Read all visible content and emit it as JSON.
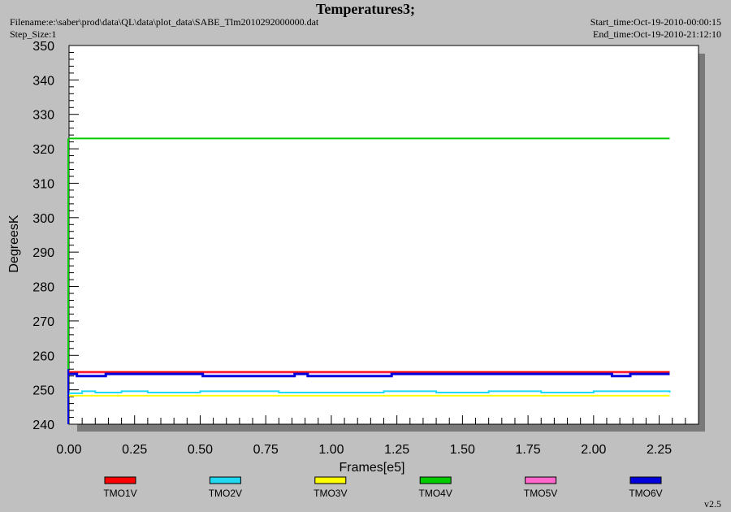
{
  "header": {
    "title": "Temperatures3;",
    "filename": "Filename:e:\\saber\\prod\\data\\QL\\data\\plot_data\\SABE_Tlm2010292000000.dat",
    "step_size": "Step_Size:1",
    "start_time": "Start_time:Oct-19-2010-00:00:15",
    "end_time": "End_time:Oct-19-2010-21:12:10"
  },
  "version": "v2.5",
  "chart_data": {
    "type": "line",
    "title": "Temperatures3;",
    "xlabel": "Frames[e5]",
    "ylabel": "DegreesK",
    "xlim": [
      0,
      2.4
    ],
    "ylim": [
      240,
      350
    ],
    "x_ticks": [
      "0.00",
      "0.25",
      "0.50",
      "0.75",
      "1.00",
      "1.25",
      "1.50",
      "1.75",
      "2.00",
      "2.25"
    ],
    "y_ticks": [
      "240",
      "250",
      "260",
      "270",
      "280",
      "290",
      "300",
      "310",
      "320",
      "330",
      "340",
      "350"
    ],
    "legend_position": "bottom",
    "series": [
      {
        "name": "TMO1V",
        "color": "#ff0000",
        "x": [
          0,
          2.29
        ],
        "y": [
          255.2,
          255.2
        ]
      },
      {
        "name": "TMO2V",
        "color": "#20d8f0",
        "x": [
          0,
          0.05,
          0.1,
          0.2,
          0.3,
          0.5,
          0.8,
          1.0,
          1.2,
          1.4,
          1.6,
          1.8,
          2.0,
          2.29
        ],
        "y": [
          249,
          249.6,
          249.2,
          249.6,
          249.2,
          249.6,
          249.2,
          249.2,
          249.6,
          249.2,
          249.6,
          249.2,
          249.6,
          249.2
        ]
      },
      {
        "name": "TMO3V",
        "color": "#ffff00",
        "x": [
          0,
          2.29
        ],
        "y": [
          248.3,
          248.3
        ]
      },
      {
        "name": "TMO4V",
        "color": "#00cc00",
        "x": [
          0,
          2.29
        ],
        "y": [
          323,
          323
        ]
      },
      {
        "name": "TMO5V",
        "color": "#ff66cc",
        "x": [
          0,
          2.29
        ],
        "y": [
          255.0,
          255.0
        ]
      },
      {
        "name": "TMO6V",
        "color": "#0000dd",
        "x": [
          0,
          0.02,
          0.03,
          0.13,
          0.14,
          0.5,
          0.51,
          0.6,
          0.61,
          0.85,
          0.86,
          0.9,
          0.91,
          1.17,
          1.22,
          1.23,
          2.06,
          2.07,
          2.13,
          2.14,
          2.29
        ],
        "y": [
          254.6,
          254.6,
          254.0,
          254.0,
          254.6,
          254.6,
          254.0,
          254.0,
          254.0,
          254.0,
          254.6,
          254.6,
          254.0,
          254.0,
          254.0,
          254.6,
          254.6,
          254.0,
          254.0,
          254.6,
          254.6
        ]
      }
    ]
  }
}
